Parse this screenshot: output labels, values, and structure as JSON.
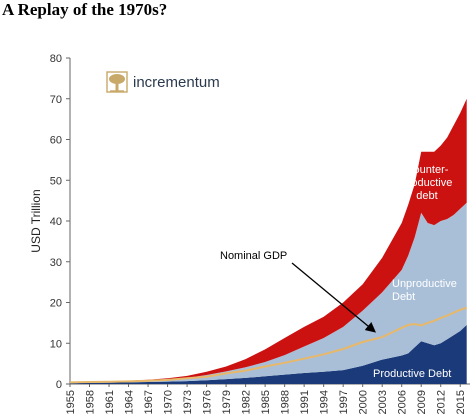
{
  "page": {
    "heading": "A Replay of the 1970s?"
  },
  "logo": {
    "text": "incrementum",
    "icon": "tree-icon",
    "color": "#c8a96a"
  },
  "chart_data": {
    "type": "area",
    "title": "",
    "xlabel": "",
    "ylabel": "USD Trillion",
    "ylim": [
      0,
      80
    ],
    "yticks": [
      0,
      10,
      20,
      30,
      40,
      50,
      60,
      70,
      80
    ],
    "x_tick_labels": [
      "1955",
      "1958",
      "1961",
      "1964",
      "1967",
      "1970",
      "1973",
      "1976",
      "1979",
      "1982",
      "1985",
      "1988",
      "1991",
      "1994",
      "1997",
      "2000",
      "2003",
      "2006",
      "2009",
      "2012",
      "2015"
    ],
    "stacked": true,
    "grid": false,
    "x": [
      1955,
      1958,
      1961,
      1964,
      1967,
      1970,
      1973,
      1976,
      1979,
      1982,
      1985,
      1988,
      1991,
      1994,
      1997,
      2000,
      2003,
      2006,
      2007,
      2008,
      2009,
      2010,
      2011,
      2012,
      2013,
      2014,
      2015,
      2016
    ],
    "series": [
      {
        "name": "Productive Debt",
        "color": "#1b3a7a",
        "values": [
          0.2,
          0.3,
          0.35,
          0.4,
          0.5,
          0.6,
          0.7,
          0.9,
          1.2,
          1.5,
          1.9,
          2.3,
          2.7,
          3.0,
          3.4,
          4.5,
          6.0,
          7.0,
          7.5,
          9.0,
          10.5,
          10.0,
          9.5,
          10.0,
          11.0,
          12.0,
          13.0,
          14.5
        ]
      },
      {
        "name": "Unproductive Debt",
        "color": "#a9bfd8",
        "values": [
          0.1,
          0.15,
          0.2,
          0.25,
          0.35,
          0.5,
          0.8,
          1.3,
          1.9,
          2.6,
          3.5,
          4.8,
          6.5,
          8.3,
          10.6,
          13.5,
          16.5,
          21.0,
          24.0,
          27.0,
          31.5,
          29.5,
          29.5,
          30.0,
          29.5,
          29.5,
          30.0,
          30.0
        ]
      },
      {
        "name": "Counter-productive Debt",
        "color": "#cc1111",
        "values": [
          0.05,
          0.1,
          0.1,
          0.15,
          0.2,
          0.3,
          0.5,
          0.8,
          1.2,
          2.0,
          3.1,
          4.2,
          4.8,
          5.2,
          6.0,
          6.5,
          8.5,
          11.5,
          12.5,
          13.0,
          15.0,
          17.5,
          18.0,
          18.5,
          20.0,
          22.0,
          23.5,
          25.5
        ]
      }
    ],
    "line_series": [
      {
        "name": "Nominal GDP",
        "color": "#e8b86a",
        "values": [
          0.4,
          0.5,
          0.55,
          0.65,
          0.8,
          1.0,
          1.4,
          1.8,
          2.6,
          3.3,
          4.3,
          5.2,
          6.2,
          7.3,
          8.6,
          10.3,
          11.5,
          13.8,
          14.5,
          14.7,
          14.4,
          15.0,
          15.5,
          16.2,
          16.8,
          17.5,
          18.2,
          18.7
        ]
      }
    ],
    "annotations": [
      {
        "text": "Counter-",
        "color": "#ffffff"
      },
      {
        "text": "productive",
        "color": "#ffffff"
      },
      {
        "text": "debt",
        "color": "#ffffff"
      },
      {
        "text": "Unproductive",
        "color": "#ffffff"
      },
      {
        "text": "Debt",
        "color": "#ffffff"
      },
      {
        "text": "Productive Debt",
        "color": "#ffffff"
      },
      {
        "text": "Nominal GDP",
        "color": "#000000"
      }
    ]
  }
}
